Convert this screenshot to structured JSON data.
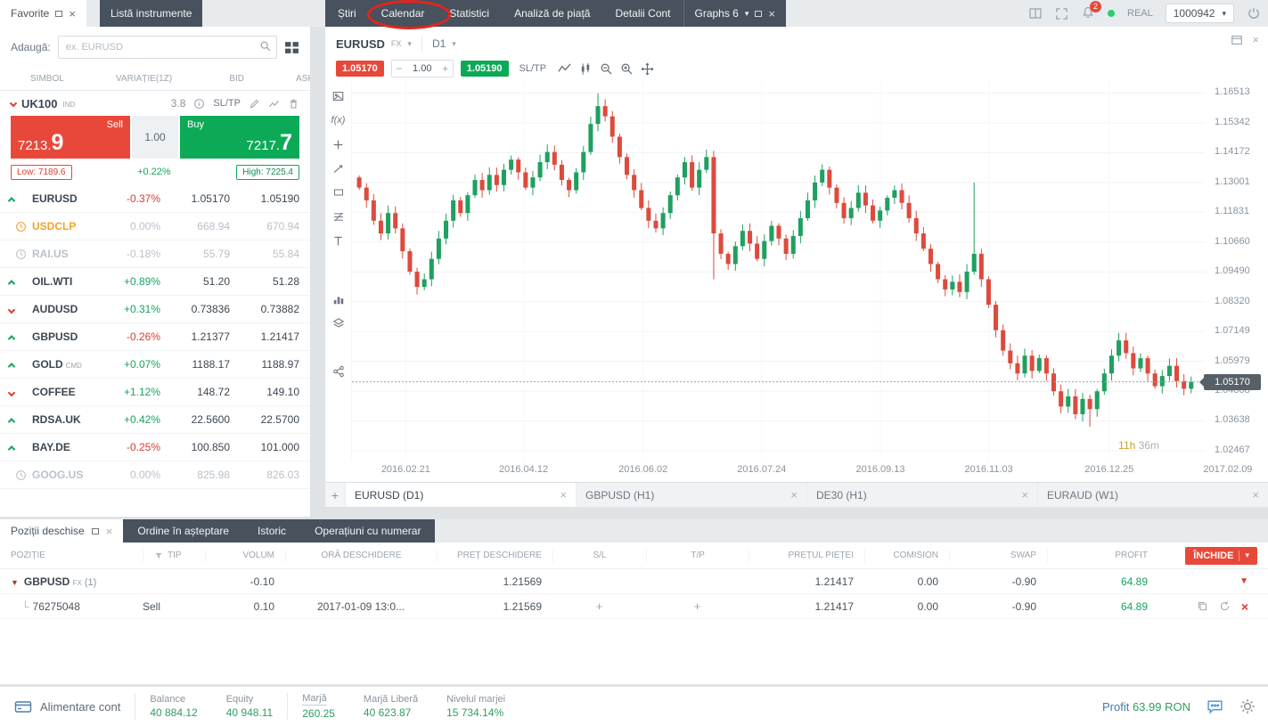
{
  "colors": {
    "accent_red": "#e8483a",
    "accent_green": "#0caa57",
    "candle_up": "#1fa05f",
    "candle_down": "#dc4b3d",
    "dark_tab": "#47525e",
    "orange": "#f0a32e",
    "annotation_red": "#e8231a"
  },
  "topbar": {
    "favorite_tab": "Favorite",
    "instruments_tab": "Listă instrumente",
    "menu": [
      "Știri",
      "Calendar",
      "Statistici",
      "Analiză de piață",
      "Detalii Cont"
    ],
    "graphs_tab": "Graphs 6",
    "notification_count": "2",
    "account_type": "REAL",
    "account_id": "1000942"
  },
  "watchlist": {
    "add_label": "Adaugă:",
    "search_placeholder": "ex. EURUSD",
    "columns": [
      "SIMBOL",
      "VARIAȚIE(1Z)",
      "BID",
      "ASK"
    ],
    "expanded": {
      "symbol": "UK100",
      "category": "IND",
      "spread": "3.8",
      "sltp_label": "SL/TP",
      "sell_label": "Sell",
      "sell_price_main": "7213.",
      "sell_price_big": "9",
      "volume": "1.00",
      "buy_label": "Buy",
      "buy_price_main": "7217.",
      "buy_price_big": "7",
      "low_label": "Low: 7189.6",
      "change": "+0.22%",
      "high_label": "High: 7225.4"
    },
    "rows": [
      {
        "symbol": "EURUSD",
        "change": "-0.37%",
        "bid": "1.05170",
        "ask": "1.05190"
      },
      {
        "symbol": "USDCLP",
        "change": "0.00%",
        "bid": "668.94",
        "ask": "670.94"
      },
      {
        "symbol": "RAI.US",
        "change": "-0.18%",
        "bid": "55.79",
        "ask": "55.84"
      },
      {
        "symbol": "OIL.WTI",
        "change": "+0.89%",
        "bid": "51.20",
        "ask": "51.28"
      },
      {
        "symbol": "AUDUSD",
        "change": "+0.31%",
        "bid": "0.73836",
        "ask": "0.73882"
      },
      {
        "symbol": "GBPUSD",
        "change": "-0.26%",
        "bid": "1.21377",
        "ask": "1.21417"
      },
      {
        "symbol": "GOLD",
        "suffix": "CMD",
        "change": "+0.07%",
        "bid": "1188.17",
        "ask": "1188.97"
      },
      {
        "symbol": "COFFEE",
        "change": "+1.12%",
        "bid": "148.72",
        "ask": "149.10"
      },
      {
        "symbol": "RDSA.UK",
        "change": "+0.42%",
        "bid": "22.5600",
        "ask": "22.5700"
      },
      {
        "symbol": "BAY.DE",
        "change": "-0.25%",
        "bid": "100.850",
        "ask": "101.000"
      },
      {
        "symbol": "GOOG.US",
        "change": "0.00%",
        "bid": "825.98",
        "ask": "826.03"
      }
    ]
  },
  "chart": {
    "symbol": "EURUSD",
    "market": "FX",
    "timeframe": "D1",
    "sell_price": "1.05170",
    "volume": "1.00",
    "buy_price": "1.05190",
    "sltp_label": "SL/TP",
    "toolbar_fx": "f(x)",
    "countdown_hours": "11h",
    "countdown_minutes": "36m",
    "current_price_label": "1.05170",
    "tabs": [
      "EURUSD (D1)",
      "GBPUSD (H1)",
      "DE30 (H1)",
      "EURAUD (W1)"
    ]
  },
  "chart_data": {
    "type": "candlestick",
    "title": "EURUSD D1",
    "ylim": [
      1.0215,
      1.1695
    ],
    "current_price": 1.0517,
    "y_ticks": [
      "1.16513",
      "1.15342",
      "1.14172",
      "1.13001",
      "1.11831",
      "1.10660",
      "1.09490",
      "1.08320",
      "1.07149",
      "1.05979",
      "1.04808",
      "1.03638",
      "1.02467"
    ],
    "x_ticks": [
      "2016.02.21",
      "2016.04.12",
      "2016.06.02",
      "2016.07.24",
      "2016.09.13",
      "2016.11.03",
      "2016.12.25",
      "2017.02.09"
    ],
    "open_first": 1.132,
    "closes": [
      1.128,
      1.123,
      1.115,
      1.11,
      1.118,
      1.112,
      1.103,
      1.095,
      1.089,
      1.092,
      1.1,
      1.108,
      1.115,
      1.123,
      1.118,
      1.125,
      1.131,
      1.127,
      1.133,
      1.129,
      1.135,
      1.139,
      1.134,
      1.128,
      1.132,
      1.138,
      1.142,
      1.137,
      1.131,
      1.127,
      1.134,
      1.142,
      1.153,
      1.16,
      1.156,
      1.148,
      1.14,
      1.133,
      1.127,
      1.12,
      1.115,
      1.112,
      1.118,
      1.125,
      1.132,
      1.138,
      1.128,
      1.135,
      1.14,
      1.11,
      1.102,
      1.098,
      1.105,
      1.111,
      1.106,
      1.1,
      1.107,
      1.113,
      1.108,
      1.102,
      1.109,
      1.116,
      1.123,
      1.13,
      1.135,
      1.128,
      1.122,
      1.116,
      1.12,
      1.126,
      1.121,
      1.115,
      1.119,
      1.124,
      1.127,
      1.122,
      1.116,
      1.11,
      1.104,
      1.098,
      1.092,
      1.088,
      1.091,
      1.087,
      1.095,
      1.102,
      1.092,
      1.082,
      1.072,
      1.064,
      1.059,
      1.055,
      1.062,
      1.056,
      1.061,
      1.055,
      1.048,
      1.042,
      1.046,
      1.039,
      1.045,
      1.041,
      1.048,
      1.055,
      1.062,
      1.068,
      1.063,
      1.057,
      1.061,
      1.055,
      1.05,
      1.054,
      1.058,
      1.052,
      1.049,
      1.0517
    ],
    "wick_overrides": {
      "33": {
        "h": 1.1651
      },
      "49": {
        "l": 1.092
      },
      "85": {
        "h": 1.13
      },
      "101": {
        "l": 1.0341
      }
    }
  },
  "positions": {
    "tabs": [
      "Poziții deschise",
      "Ordine în așteptare",
      "Istoric",
      "Operațiuni cu numerar"
    ],
    "columns": [
      "POZIȚIE",
      "TIP",
      "VOLUM",
      "ORĂ DESCHIDERE",
      "PREȚ DESCHIDERE",
      "S/L",
      "T/P",
      "PREȚUL PIEȚEI",
      "COMISION",
      "SWAP",
      "PROFIT"
    ],
    "close_button": "ÎNCHIDE",
    "group": {
      "symbol": "GBPUSD",
      "market": "FX",
      "count": "(1)",
      "volume": "-0.10",
      "open_price": "1.21569",
      "market_price": "1.21417",
      "commission": "0.00",
      "swap": "-0.90",
      "profit": "64.89"
    },
    "order": {
      "id": "76275048",
      "type": "Sell",
      "volume": "0.10",
      "open_time": "2017-01-09 13:0...",
      "open_price": "1.21569",
      "market_price": "1.21417",
      "commission": "0.00",
      "swap": "-0.90",
      "profit": "64.89"
    }
  },
  "footer": {
    "deposit_label": "Alimentare cont",
    "stats": [
      {
        "label": "Balance",
        "value": "40 884.12"
      },
      {
        "label": "Equity",
        "value": "40 948.11"
      },
      {
        "label": "Marjă",
        "value": "260.25"
      },
      {
        "label": "Marjă Liberă",
        "value": "40 623.87"
      },
      {
        "label": "Nivelul marjei",
        "value": "15 734.14%"
      }
    ],
    "profit_label": "Profit",
    "profit_value": "63.99 RON"
  }
}
